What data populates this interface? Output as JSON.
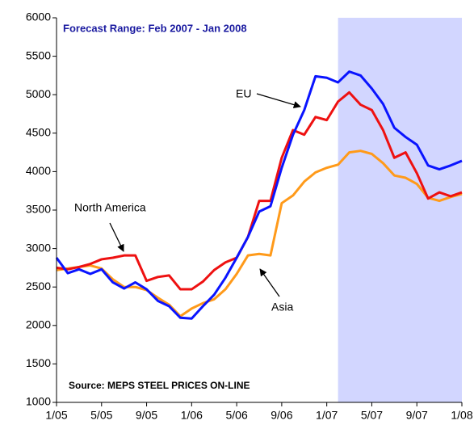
{
  "chart_data": {
    "type": "line",
    "title": "Forecast Range: Feb 2007 - Jan 2008",
    "source": "Source: MEPS STEEL PRICES ON-LINE",
    "categories": [
      "1/05",
      null,
      null,
      null,
      "5/05",
      null,
      null,
      null,
      "9/05",
      null,
      null,
      null,
      "1/06",
      null,
      null,
      null,
      "5/06",
      null,
      null,
      null,
      "9/06",
      null,
      null,
      null,
      "1/07",
      null,
      null,
      null,
      "5/07",
      null,
      null,
      null,
      "9/07",
      null,
      null,
      null,
      "1/08"
    ],
    "series": [
      {
        "name": "EU",
        "color": "#0a14ff",
        "values": [
          2880,
          2680,
          2730,
          2670,
          2730,
          2560,
          2480,
          2560,
          2470,
          2320,
          2250,
          2100,
          2090,
          2250,
          2400,
          2620,
          2880,
          3150,
          3480,
          3550,
          4050,
          4480,
          4800,
          5240,
          5220,
          5160,
          5300,
          5250,
          5080,
          4880,
          4570,
          4450,
          4350,
          4080,
          4030,
          4080,
          4140
        ]
      },
      {
        "name": "North America",
        "color": "#ee1111",
        "values": [
          2750,
          2730,
          2760,
          2800,
          2860,
          2880,
          2910,
          2910,
          2580,
          2630,
          2650,
          2470,
          2470,
          2570,
          2720,
          2820,
          2880,
          3150,
          3620,
          3620,
          4180,
          4540,
          4480,
          4710,
          4670,
          4910,
          5030,
          4870,
          4800,
          4540,
          4180,
          4250,
          3980,
          3650,
          3730,
          3680,
          3730
        ]
      },
      {
        "name": "Asia",
        "color": "#ff9a1a",
        "values": [
          2720,
          2740,
          2760,
          2780,
          2740,
          2600,
          2500,
          2500,
          2460,
          2360,
          2270,
          2120,
          2220,
          2290,
          2340,
          2470,
          2670,
          2910,
          2930,
          2910,
          3590,
          3690,
          3870,
          3990,
          4050,
          4090,
          4250,
          4270,
          4230,
          4110,
          3950,
          3920,
          3840,
          3660,
          3620,
          3670,
          3710
        ]
      }
    ],
    "forecast_shade": {
      "from": 25,
      "to": 36,
      "color": "#d2d6ff"
    },
    "ylim": [
      1000,
      6000
    ],
    "yticks": [
      1000,
      1500,
      2000,
      2500,
      3000,
      3500,
      4000,
      4500,
      5000,
      5500,
      6000
    ]
  }
}
